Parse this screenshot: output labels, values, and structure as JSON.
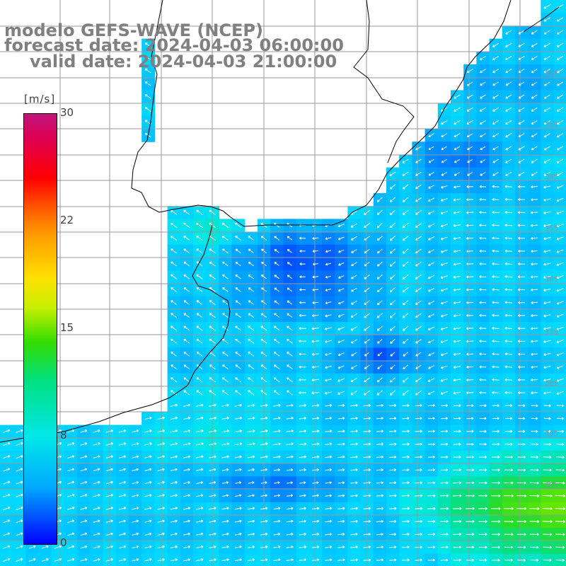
{
  "title": {
    "line1": "modelo GEFS-WAVE (NCEP)",
    "line2": "forecast date: 2024-04-03 06:00:00",
    "line3": "valid date: 2024-04-03 21:00:00"
  },
  "colorbar": {
    "unit": "[m/s]",
    "ticks": [
      {
        "label": "30",
        "value": 30
      },
      {
        "label": "22",
        "value": 22
      },
      {
        "label": "15",
        "value": 15
      },
      {
        "label": "8",
        "value": 8
      },
      {
        "label": "0",
        "value": 0
      }
    ],
    "range": [
      0,
      30
    ]
  },
  "map": {
    "land_color": "#ffffff",
    "grid_color": "#999999",
    "coast_color": "#000000",
    "arrow_color": "#ffffff",
    "right_edge_labels": [
      "335",
      "345",
      "355",
      "365",
      "375",
      "385",
      "395",
      "405"
    ],
    "right_edge_label_extra": "325"
  }
}
